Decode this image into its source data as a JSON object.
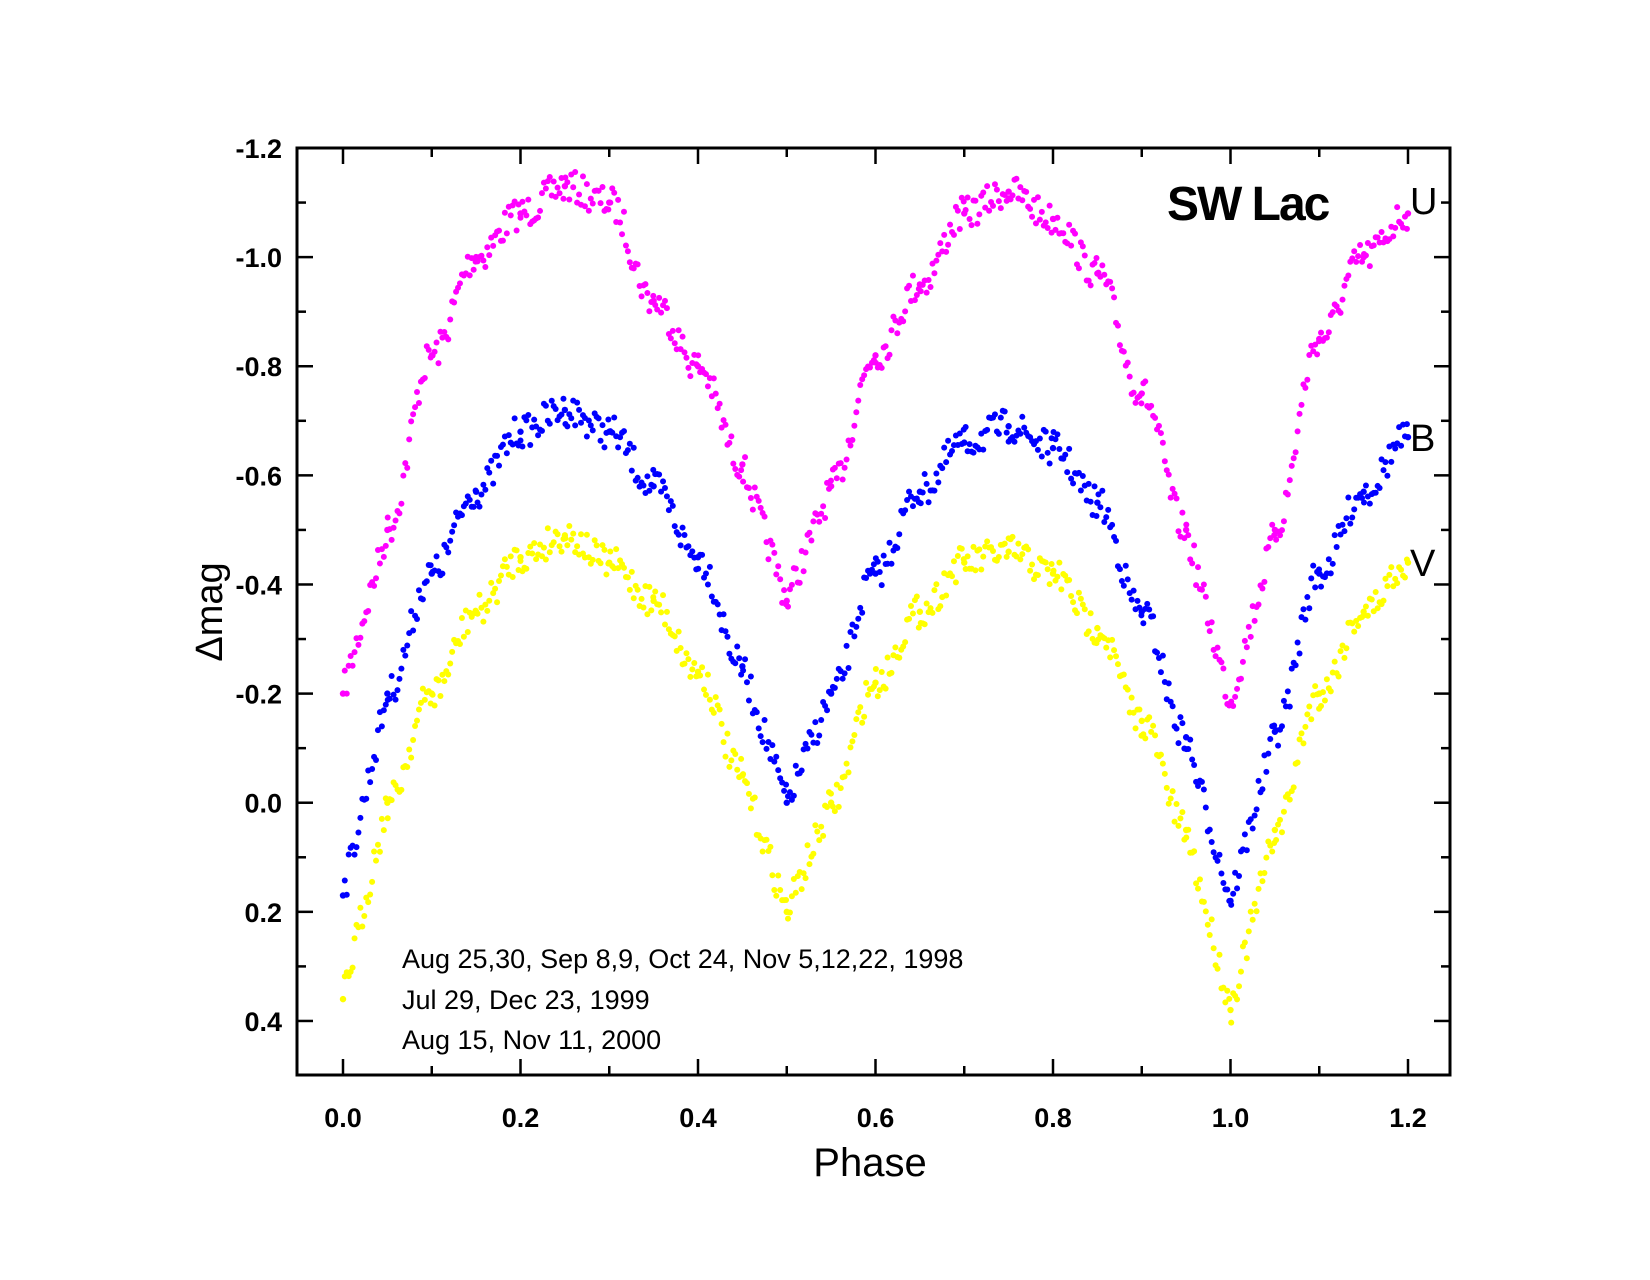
{
  "chart_data": {
    "type": "scatter",
    "title": "SW Lac",
    "xlabel": "Phase",
    "ylabel": "Δmag",
    "xlim": [
      -0.05,
      1.25
    ],
    "ylim": [
      0.5,
      -1.2
    ],
    "y_inverted": true,
    "grid": false,
    "xticks": [
      "0.0",
      "0.2",
      "0.4",
      "0.6",
      "0.8",
      "1.0",
      "1.2"
    ],
    "yticks": [
      "-1.2",
      "-1.0",
      "-0.8",
      "-0.6",
      "-0.4",
      "-0.2",
      "0.0",
      "0.2",
      "0.4"
    ],
    "x": [
      0.0,
      0.05,
      0.1,
      0.15,
      0.2,
      0.25,
      0.3,
      0.35,
      0.4,
      0.45,
      0.5,
      0.55,
      0.6,
      0.65,
      0.7,
      0.75,
      0.8,
      0.85,
      0.9,
      0.95,
      1.0,
      1.05,
      1.1,
      1.15,
      1.2
    ],
    "series": [
      {
        "name": "U",
        "color": "#ff00ff",
        "values": [
          -0.2,
          -0.5,
          -0.82,
          -1.0,
          -1.08,
          -1.13,
          -1.1,
          -0.92,
          -0.8,
          -0.62,
          -0.37,
          -0.58,
          -0.82,
          -0.95,
          -1.08,
          -1.12,
          -1.07,
          -0.97,
          -0.75,
          -0.5,
          -0.18,
          -0.5,
          -0.85,
          -1.0,
          -1.08
        ]
      },
      {
        "name": "B",
        "color": "#0000ff",
        "values": [
          0.17,
          -0.2,
          -0.42,
          -0.57,
          -0.68,
          -0.72,
          -0.68,
          -0.58,
          -0.45,
          -0.25,
          0.0,
          -0.2,
          -0.42,
          -0.57,
          -0.66,
          -0.69,
          -0.65,
          -0.55,
          -0.35,
          -0.12,
          0.18,
          -0.13,
          -0.42,
          -0.57,
          -0.67
        ]
      },
      {
        "name": "V",
        "color": "#ffff00",
        "values": [
          0.36,
          0.0,
          -0.2,
          -0.35,
          -0.45,
          -0.49,
          -0.44,
          -0.37,
          -0.24,
          -0.05,
          0.2,
          0.0,
          -0.22,
          -0.35,
          -0.44,
          -0.46,
          -0.42,
          -0.32,
          -0.15,
          0.05,
          0.38,
          0.05,
          -0.2,
          -0.35,
          -0.44
        ]
      }
    ],
    "annotations": [
      "Aug 25,30, Sep 8,9, Oct 24, Nov 5,12,22, 1998",
      "Jul 29, Dec 23, 1999",
      "Aug 15, Nov 11, 2000"
    ]
  }
}
